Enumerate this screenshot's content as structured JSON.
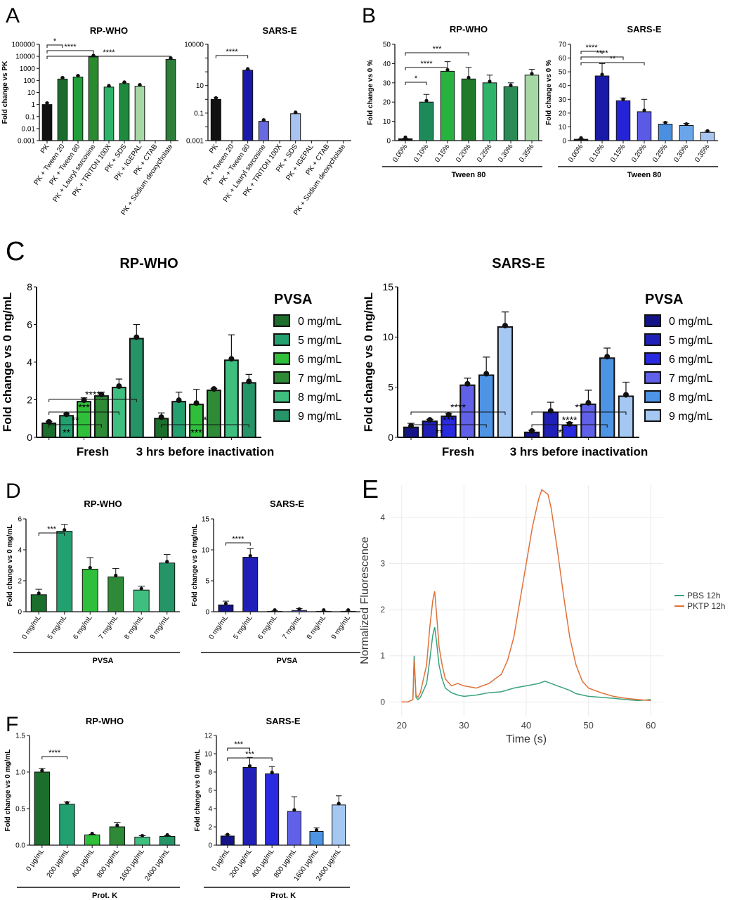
{
  "panel_letters": [
    "A",
    "B",
    "C",
    "D",
    "E",
    "F"
  ],
  "chart_data": [
    {
      "panel": "A",
      "type": "bar",
      "title": "RP-WHO",
      "ylabel": "Fold change vs PK",
      "xlabel": "",
      "yscale": "log",
      "ylim": [
        0.001,
        100000
      ],
      "yticks": [
        0.001,
        0.01,
        0.1,
        1,
        10,
        100,
        1000,
        10000,
        100000
      ],
      "yticklabels": [
        "0.001",
        "0.01",
        "0.1",
        "1",
        "10",
        "100",
        "1000",
        "10000",
        "100000"
      ],
      "categories": [
        "PK",
        "PK + Tween 20",
        "PK + Tween 80",
        "PK + Lauryl sarcosine",
        "PK + TRITON 100X",
        "PK + SDS",
        "PK + IGEPAL",
        "PK + CTAB",
        "PK + Sodium deoxycholate"
      ],
      "values": [
        1,
        130,
        190,
        9000,
        28,
        55,
        33,
        null,
        5500
      ],
      "errors": [
        0.4,
        30,
        50,
        2000,
        5,
        10,
        7,
        null,
        1500
      ],
      "colors": [
        "#111111",
        "#1a6b2c",
        "#1f9e3a",
        "#2a8a2e",
        "#2fb36b",
        "#1e8a3e",
        "#a6d8a6",
        "#8fd18f",
        "#2e7d3a"
      ],
      "significance": [
        {
          "from": 0,
          "to": 1,
          "label": "*"
        },
        {
          "from": 0,
          "to": 3,
          "label": "****"
        },
        {
          "from": 0,
          "to": 8,
          "label": "****"
        }
      ],
      "grid": false
    },
    {
      "panel": "A",
      "type": "bar",
      "title": "SARS-E",
      "ylabel": "",
      "xlabel": "",
      "yscale": "log",
      "ylim": [
        0.001,
        10000
      ],
      "yticks": [
        0.001,
        0.01,
        0.1,
        1,
        10,
        100,
        1000,
        10000
      ],
      "yticklabels": [
        "0.001",
        "",
        "0.1",
        "",
        "10",
        "",
        "",
        "10000"
      ],
      "categories": [
        "PK",
        "PK + Tween 20",
        "PK + Tween 80",
        "PK + Lauryl sarcosine",
        "PK + TRITON 100X",
        "PK + SDS",
        "PK + IGEPAL",
        "PK + CTAB",
        "PK + Sodium deoxycholate"
      ],
      "values": [
        1,
        null,
        130,
        0.025,
        null,
        0.09,
        null,
        null,
        null
      ],
      "errors": [
        0.4,
        null,
        20,
        0.005,
        null,
        0.02,
        null,
        null,
        null
      ],
      "colors": [
        "#111111",
        "#111111",
        "#1a1aa8",
        "#6a6ae0",
        "#111111",
        "#a9c3f0",
        "#111111",
        "#111111",
        "#111111"
      ],
      "significance": [
        {
          "from": 0,
          "to": 2,
          "label": "****"
        }
      ],
      "grid": false
    },
    {
      "panel": "B",
      "type": "bar",
      "title": "RP-WHO",
      "ylabel": "Fold change vs 0 %",
      "xlabel": "Tween 80",
      "ylim": [
        0,
        50
      ],
      "yticks": [
        0,
        10,
        20,
        30,
        40,
        50
      ],
      "yticklabels": [
        "0",
        "10",
        "20",
        "30",
        "40",
        "50"
      ],
      "categories": [
        "0.00%",
        "0.10%",
        "0.15%",
        "0.20%",
        "0.25%",
        "0.30%",
        "0.35%"
      ],
      "values": [
        1,
        20,
        36,
        32,
        30,
        28,
        34
      ],
      "errors": [
        0.2,
        4,
        5,
        6,
        4,
        2,
        3
      ],
      "colors": [
        "#111111",
        "#1e8a5a",
        "#28b33e",
        "#1f7a2c",
        "#2fb36b",
        "#2c8a55",
        "#a6d8a6"
      ],
      "significance": [
        {
          "from": 0,
          "to": 1,
          "label": "*"
        },
        {
          "from": 0,
          "to": 2,
          "label": "****"
        },
        {
          "from": 0,
          "to": 3,
          "label": "***"
        }
      ],
      "grid": false
    },
    {
      "panel": "B",
      "type": "bar",
      "title": "SARS-E",
      "ylabel": "Fold change vs 0 %",
      "xlabel": "Tween 80",
      "ylim": [
        0,
        70
      ],
      "yticks": [
        0,
        10,
        20,
        30,
        40,
        50,
        60,
        70
      ],
      "yticklabels": [
        "0",
        "10",
        "20",
        "30",
        "40",
        "50",
        "60",
        "70"
      ],
      "categories": [
        "0.00%",
        "0.10%",
        "0.15%",
        "0.20%",
        "0.25%",
        "0.30%",
        "0.35%"
      ],
      "values": [
        1,
        47,
        29,
        21,
        12,
        11,
        6
      ],
      "errors": [
        0.3,
        9,
        2,
        9,
        1.5,
        1.5,
        1
      ],
      "colors": [
        "#111111",
        "#1a1aa8",
        "#2424d6",
        "#5a5ae6",
        "#4a8fe0",
        "#6aa5ea",
        "#a9c3f0"
      ],
      "significance": [
        {
          "from": 0,
          "to": 1,
          "label": "****"
        },
        {
          "from": 0,
          "to": 2,
          "label": "****"
        },
        {
          "from": 0,
          "to": 3,
          "label": "**"
        }
      ],
      "grid": false
    },
    {
      "panel": "C",
      "type": "bar",
      "title": "RP-WHO",
      "ylabel": "Fold change vs 0 mg/mL",
      "xlabel": "",
      "ylim": [
        0,
        8
      ],
      "yticks": [
        0,
        2,
        4,
        6,
        8
      ],
      "yticklabels": [
        "0",
        "2",
        "4",
        "6",
        "8"
      ],
      "groups": [
        "Fresh",
        "3 hrs before inactivation"
      ],
      "legend_title": "PVSA",
      "legend_position": "right",
      "series": [
        {
          "name": "0 mg/mL",
          "color": "#1b6e2b",
          "values": [
            0.75,
            1.0
          ],
          "errors": [
            0.1,
            0.3
          ]
        },
        {
          "name": "5 mg/mL",
          "color": "#23a06f",
          "values": [
            1.15,
            1.9
          ],
          "errors": [
            0.1,
            0.5
          ]
        },
        {
          "name": "6 mg/mL",
          "color": "#2fbf3a",
          "values": [
            1.9,
            1.75
          ],
          "errors": [
            0.2,
            0.8
          ]
        },
        {
          "name": "7 mg/mL",
          "color": "#2e8a36",
          "values": [
            2.2,
            2.5
          ],
          "errors": [
            0.2,
            0.1
          ]
        },
        {
          "name": "8 mg/mL",
          "color": "#3fbf7f",
          "values": [
            2.65,
            4.1
          ],
          "errors": [
            0.45,
            1.35
          ]
        },
        {
          "name": "9 mg/mL",
          "color": "#259467",
          "values": [
            5.25,
            2.9
          ],
          "errors": [
            0.75,
            0.45
          ]
        }
      ],
      "significance": [
        {
          "from": [
            0,
            0
          ],
          "to": [
            0,
            2
          ],
          "label": "**"
        },
        {
          "from": [
            0,
            0
          ],
          "to": [
            0,
            3
          ],
          "label": "**"
        },
        {
          "from": [
            0,
            0
          ],
          "to": [
            0,
            4
          ],
          "label": "***"
        },
        {
          "from": [
            0,
            0
          ],
          "to": [
            0,
            5
          ],
          "label": "****"
        },
        {
          "from": [
            1,
            0
          ],
          "to": [
            1,
            4
          ],
          "label": "***"
        },
        {
          "from": [
            1,
            0
          ],
          "to": [
            1,
            5
          ],
          "label": "*"
        }
      ],
      "grid": false
    },
    {
      "panel": "C",
      "type": "bar",
      "title": "SARS-E",
      "ylabel": "Fold change vs 0 mg/mL",
      "xlabel": "",
      "ylim": [
        0,
        15
      ],
      "yticks": [
        0,
        5,
        10,
        15
      ],
      "yticklabels": [
        "0",
        "5",
        "10",
        "15"
      ],
      "groups": [
        "Fresh",
        "3 hrs before inactivation"
      ],
      "legend_title": "PVSA",
      "legend_position": "right",
      "series": [
        {
          "name": "0 mg/mL",
          "color": "#141488",
          "values": [
            1.0,
            0.5
          ],
          "errors": [
            0.4,
            0.2
          ]
        },
        {
          "name": "5 mg/mL",
          "color": "#2020b8",
          "values": [
            1.6,
            2.5
          ],
          "errors": [
            0.2,
            1.0
          ]
        },
        {
          "name": "6 mg/mL",
          "color": "#2a2ae0",
          "values": [
            2.1,
            1.2
          ],
          "errors": [
            0.3,
            0.3
          ]
        },
        {
          "name": "7 mg/mL",
          "color": "#6060e8",
          "values": [
            5.2,
            3.3
          ],
          "errors": [
            0.7,
            1.4
          ]
        },
        {
          "name": "8 mg/mL",
          "color": "#4e94e4",
          "values": [
            6.2,
            7.9
          ],
          "errors": [
            1.8,
            1.0
          ]
        },
        {
          "name": "9 mg/mL",
          "color": "#a4c8f2",
          "values": [
            11.0,
            4.1
          ],
          "errors": [
            1.5,
            1.4
          ]
        }
      ],
      "significance": [
        {
          "from": [
            0,
            0
          ],
          "to": [
            0,
            3
          ],
          "label": "**"
        },
        {
          "from": [
            0,
            0
          ],
          "to": [
            0,
            4
          ],
          "label": "***"
        },
        {
          "from": [
            0,
            0
          ],
          "to": [
            0,
            5
          ],
          "label": "****"
        },
        {
          "from": [
            1,
            0
          ],
          "to": [
            1,
            3
          ],
          "label": "*"
        },
        {
          "from": [
            1,
            0
          ],
          "to": [
            1,
            4
          ],
          "label": "****"
        },
        {
          "from": [
            1,
            0
          ],
          "to": [
            1,
            5
          ],
          "label": "**"
        }
      ],
      "grid": false
    },
    {
      "panel": "D",
      "type": "bar",
      "title": "RP-WHO",
      "ylabel": "Fold change vs 0 mg/mL",
      "xlabel": "PVSA",
      "ylim": [
        0,
        6
      ],
      "yticks": [
        0,
        2,
        4,
        6
      ],
      "yticklabels": [
        "0",
        "2",
        "4",
        "6"
      ],
      "categories": [
        "0 mg/mL",
        "5 mg/mL",
        "6 mg/mL",
        "7 mg/mL",
        "8 mg/mL",
        "9 mg/mL"
      ],
      "values": [
        1.1,
        5.2,
        2.75,
        2.25,
        1.4,
        3.15
      ],
      "errors": [
        0.35,
        0.45,
        0.75,
        0.55,
        0.25,
        0.55
      ],
      "colors": [
        "#1b6e2b",
        "#23a06f",
        "#2fbf3a",
        "#2e8a36",
        "#3fbf7f",
        "#259467"
      ],
      "significance": [
        {
          "from": 0,
          "to": 1,
          "label": "***"
        }
      ],
      "grid": false
    },
    {
      "panel": "D",
      "type": "bar",
      "title": "SARS-E",
      "ylabel": "Fold change vs 0 mg/mL",
      "xlabel": "PVSA",
      "ylim": [
        0,
        15
      ],
      "yticks": [
        0,
        5,
        10,
        15
      ],
      "yticklabels": [
        "0",
        "5",
        "10",
        "15"
      ],
      "categories": [
        "0 mg/mL",
        "5 mg/mL",
        "6 mg/mL",
        "7 mg/mL",
        "8 mg/mL",
        "9 mg/mL"
      ],
      "values": [
        1.1,
        8.8,
        0.05,
        0.2,
        0.05,
        0.05
      ],
      "errors": [
        0.6,
        1.4,
        0.1,
        0.3,
        0.05,
        0.05
      ],
      "colors": [
        "#141488",
        "#2020b8",
        "#2a2ae0",
        "#6060e8",
        "#4e94e4",
        "#a4c8f2"
      ],
      "significance": [
        {
          "from": 0,
          "to": 1,
          "label": "****"
        }
      ],
      "grid": false
    },
    {
      "panel": "E",
      "type": "line",
      "title": "",
      "xlabel": "Time (s)",
      "ylabel": "Normalized Fluorescence",
      "xlim": [
        18,
        62
      ],
      "ylim": [
        -0.3,
        4.7
      ],
      "xticks": [
        20,
        30,
        40,
        50,
        60
      ],
      "yticks": [
        0,
        1,
        2,
        3,
        4
      ],
      "legend_position": "right",
      "series": [
        {
          "name": "PBS 12h",
          "color": "#3aa27c",
          "x": [
            20,
            21,
            21.8,
            22,
            22.3,
            22.6,
            23,
            24,
            24.5,
            25,
            25.3,
            25.6,
            26,
            26.5,
            27,
            28,
            29,
            30,
            32,
            34,
            36,
            38,
            40,
            42,
            43,
            44,
            45,
            46,
            47,
            48,
            50,
            52,
            54,
            56,
            58,
            60
          ],
          "y": [
            0,
            0,
            0.05,
            1.0,
            0.1,
            0.05,
            0.1,
            0.4,
            0.9,
            1.45,
            1.62,
            1.3,
            0.8,
            0.5,
            0.3,
            0.2,
            0.15,
            0.12,
            0.15,
            0.2,
            0.22,
            0.3,
            0.35,
            0.4,
            0.45,
            0.4,
            0.35,
            0.3,
            0.25,
            0.18,
            0.12,
            0.1,
            0.08,
            0.05,
            0.03,
            0.05
          ]
        },
        {
          "name": "PKTP 12h",
          "color": "#e0713a",
          "x": [
            20,
            21,
            21.8,
            22,
            22.3,
            22.6,
            23,
            24,
            24.5,
            25,
            25.3,
            25.6,
            26,
            26.5,
            27,
            28,
            29,
            30,
            32,
            34,
            36,
            37,
            38,
            39,
            40,
            41,
            42,
            42.5,
            43,
            43.5,
            44,
            45,
            46,
            47,
            48,
            49,
            50,
            52,
            54,
            56,
            58,
            60
          ],
          "y": [
            0,
            0,
            0.05,
            0.9,
            0.15,
            0.1,
            0.2,
            0.8,
            1.6,
            2.2,
            2.4,
            1.9,
            1.2,
            0.8,
            0.5,
            0.35,
            0.4,
            0.35,
            0.3,
            0.4,
            0.6,
            0.9,
            1.4,
            2.2,
            3.0,
            3.8,
            4.4,
            4.6,
            4.55,
            4.5,
            4.2,
            3.3,
            2.3,
            1.4,
            0.8,
            0.45,
            0.3,
            0.2,
            0.12,
            0.08,
            0.05,
            0.03
          ]
        }
      ],
      "grid": true
    },
    {
      "panel": "F",
      "type": "bar",
      "title": "RP-WHO",
      "ylabel": "Fold change vs 0 mg/mL",
      "xlabel": "Prot. K",
      "ylim": [
        0,
        1.5
      ],
      "yticks": [
        0,
        0.5,
        1.0,
        1.5
      ],
      "yticklabels": [
        "0.0",
        "0.5",
        "1.0",
        "1.5"
      ],
      "categories": [
        "0 μg/mL",
        "200 μg/mL",
        "400 μg/mL",
        "800 μg/mL",
        "1600 μg/mL",
        "2400 μg/mL"
      ],
      "values": [
        1.0,
        0.56,
        0.14,
        0.25,
        0.11,
        0.12
      ],
      "errors": [
        0.05,
        0.03,
        0.01,
        0.06,
        0.02,
        0.01
      ],
      "colors": [
        "#1b6e2b",
        "#23a06f",
        "#2fbf3a",
        "#2e8a36",
        "#3fbf7f",
        "#259467"
      ],
      "significance": [
        {
          "from": 0,
          "to": 1,
          "label": "****"
        }
      ],
      "grid": false
    },
    {
      "panel": "F",
      "type": "bar",
      "title": "SARS-E",
      "ylabel": "Fold change vs 0 mg/mL",
      "xlabel": "Prot. K",
      "ylim": [
        0,
        12
      ],
      "yticks": [
        0,
        2,
        4,
        6,
        8,
        10,
        12
      ],
      "yticklabels": [
        "0",
        "2",
        "4",
        "6",
        "8",
        "10",
        "12"
      ],
      "categories": [
        "0 μg/mL",
        "200 μg/mL",
        "400 μg/mL",
        "800 μg/mL",
        "1600 μg/mL",
        "2400 μg/mL"
      ],
      "values": [
        1.0,
        8.5,
        7.8,
        3.7,
        1.5,
        4.4
      ],
      "errors": [
        0.15,
        1.1,
        0.8,
        1.6,
        0.4,
        1.0
      ],
      "colors": [
        "#141488",
        "#2020b8",
        "#2a2ae0",
        "#6060e8",
        "#4e94e4",
        "#a4c8f2"
      ],
      "significance": [
        {
          "from": 0,
          "to": 1,
          "label": "***"
        },
        {
          "from": 0,
          "to": 2,
          "label": "***"
        }
      ],
      "grid": false
    }
  ]
}
